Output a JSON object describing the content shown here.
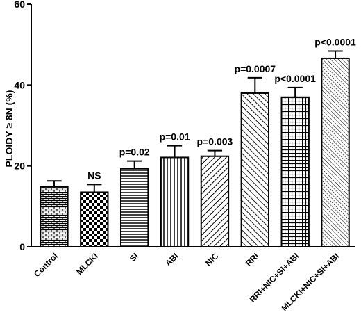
{
  "chart_data": {
    "type": "bar",
    "ylabel": "PLOIDY ≥ 8N (%)",
    "ylim": [
      0,
      60
    ],
    "yticks": [
      0,
      20,
      40,
      60
    ],
    "categories": [
      "Control",
      "MLCKI",
      "SI",
      "ABI",
      "NIC",
      "RRI",
      "RRI+NIC+SI+ABI",
      "MLCKI+NIC+SI+ABI"
    ],
    "values": [
      14.8,
      13.5,
      19.3,
      22.1,
      22.4,
      38.0,
      37.0,
      46.6
    ],
    "errors": [
      1.5,
      1.9,
      1.9,
      2.9,
      1.4,
      3.8,
      2.4,
      1.8
    ],
    "annotations": [
      "",
      "NS",
      "p=0.02",
      "p=0.01",
      "p=0.003",
      "p=0.0007",
      "p<0.0001",
      "p<0.0001"
    ],
    "patterns": [
      "brick",
      "checker",
      "hlines",
      "vlines",
      "diag-right",
      "diag-left",
      "grid",
      "diag-fine"
    ]
  }
}
